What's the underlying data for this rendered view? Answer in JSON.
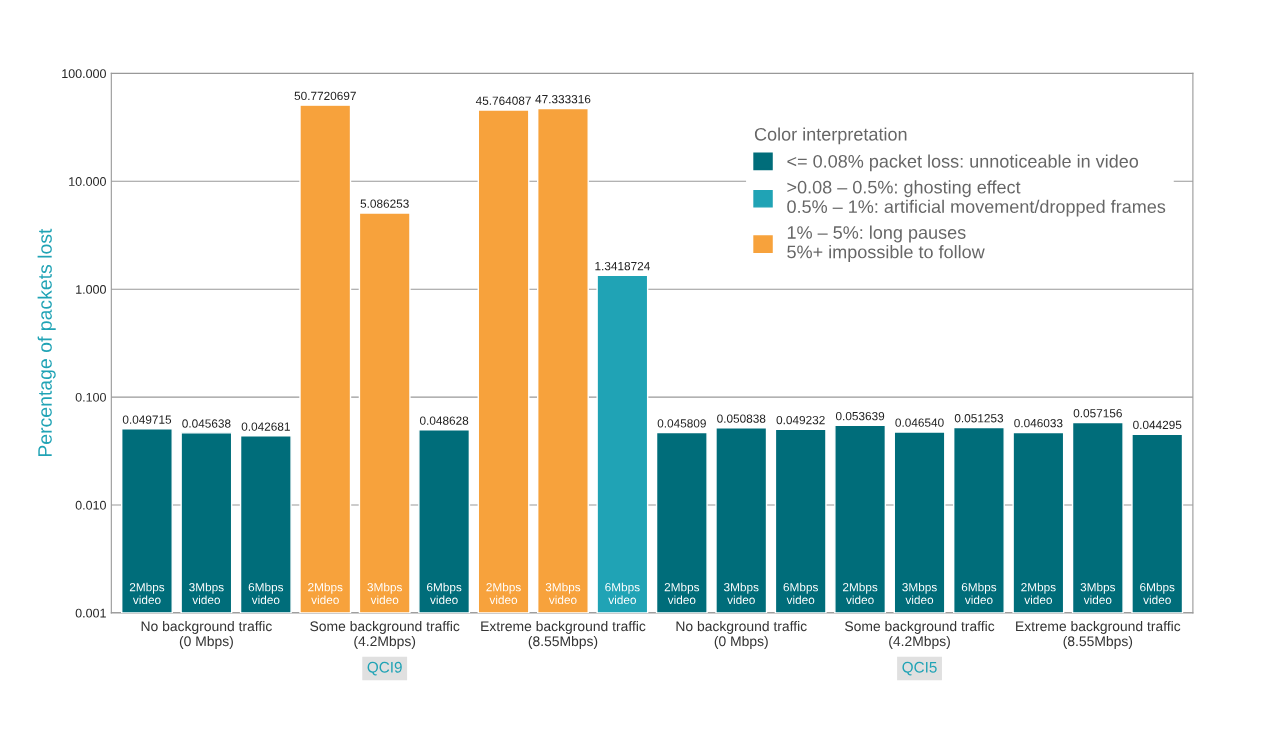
{
  "chart_data": {
    "type": "bar",
    "ylabel": "Percentage of packets lost",
    "legend_title": "Color interpretation",
    "categories": [
      "2Mbps\nvideo",
      "3Mbps\nvideo",
      "6Mbps\nvideo",
      "2Mbps\nvideo",
      "3Mbps\nvideo",
      "6Mbps\nvideo",
      "2Mbps\nvideo",
      "3Mbps\nvideo",
      "6Mbps\nvideo",
      "2Mbps\nvideo",
      "3Mbps\nvideo",
      "6Mbps\nvideo",
      "2Mbps\nvideo",
      "3Mbps\nvideo",
      "6Mbps\nvideo",
      "2Mbps\nvideo",
      "3Mbps\nvideo",
      "6Mbps\nvideo"
    ],
    "series": [
      {
        "name": "<= 0.08% packet loss: unnoticeable in video",
        "color": "#006d7a",
        "values": [
          0.049715,
          0.045638,
          0.042681,
          null,
          null,
          0.048628,
          null,
          null,
          null,
          0.045809,
          0.050838,
          0.049232,
          0.053639,
          0.04654,
          0.051253,
          0.046033,
          0.057156,
          0.044295
        ],
        "value_labels": [
          "0.049715",
          "0.045638",
          "0.042681",
          null,
          null,
          "0.048628",
          null,
          null,
          null,
          "0.045809",
          "0.050838",
          "0.049232",
          "0.053639",
          "0.046540",
          "0.051253",
          "0.046033",
          "0.057156",
          "0.044295"
        ]
      },
      {
        "name": ">0.08 – 0.5%: ghosting effect\n0.5% – 1%: artificial movement/dropped frames",
        "color": "#20a3b5",
        "values": [
          null,
          null,
          null,
          null,
          null,
          null,
          null,
          null,
          1.3418724,
          null,
          null,
          null,
          null,
          null,
          null,
          null,
          null,
          null
        ],
        "value_labels": [
          null,
          null,
          null,
          null,
          null,
          null,
          null,
          null,
          "1.3418724",
          null,
          null,
          null,
          null,
          null,
          null,
          null,
          null,
          null
        ]
      },
      {
        "name": "1% – 5%: long pauses\n5%+ impossible to follow",
        "color": "#f7a23c",
        "values": [
          null,
          null,
          null,
          50.7720697,
          5.086253,
          null,
          45.764087,
          47.333316,
          null,
          null,
          null,
          null,
          null,
          null,
          null,
          null,
          null,
          null
        ],
        "value_labels": [
          null,
          null,
          null,
          "50.7720697",
          "5.086253",
          null,
          "45.764087",
          "47.333316",
          null,
          null,
          null,
          null,
          null,
          null,
          null,
          null,
          null,
          null
        ]
      }
    ],
    "log": true,
    "ylim": [
      0.001,
      100
    ],
    "yticks": [
      0.001,
      {
        "value": 0.01,
        "label": "0.010"
      },
      {
        "value": 0.1,
        "label": "0.100"
      },
      {
        "value": 1,
        "label": "1.000"
      },
      {
        "value": 10,
        "label": "10.000"
      },
      {
        "value": 100,
        "label": "100.000"
      }
    ],
    "grid": "y",
    "legend": "top right",
    "annotations": [
      "No background traffic\n(0 Mbps)",
      "Some background traffic\n(4.2Mbps)",
      "Extreme background traffic\n(8.55Mbps)",
      "No background traffic\n(0 Mbps)",
      "Some background traffic\n(4.2Mbps)",
      "Extreme background traffic\n(8.55Mbps)",
      "QCI9",
      "QCI5"
    ]
  }
}
